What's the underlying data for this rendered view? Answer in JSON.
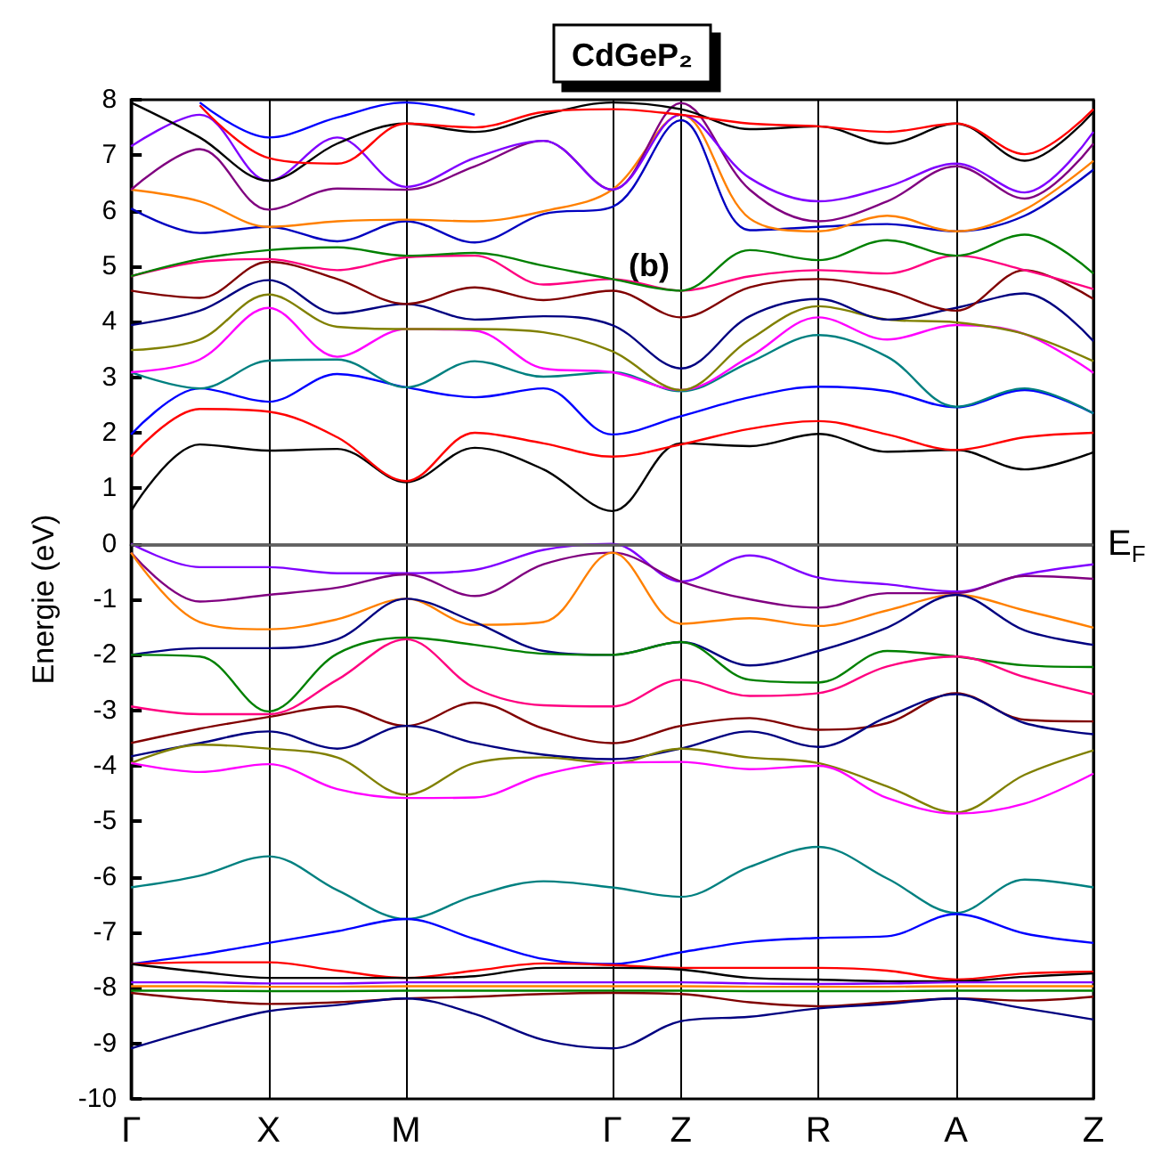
{
  "chart_data": {
    "type": "line",
    "title": "CdGeP₂",
    "ylabel": "Energie (eV)",
    "annotations": [
      "(b)"
    ],
    "categories": [
      "Γ",
      null,
      "X",
      null,
      "M",
      null,
      null,
      "Γ",
      "Z",
      null,
      "R",
      null,
      "A",
      null,
      "Z"
    ],
    "ylim": [
      -10,
      8
    ],
    "yticks": [
      -10,
      -9,
      -8,
      -7,
      -6,
      -5,
      -4,
      -3,
      -2,
      -1,
      0,
      1,
      2,
      3,
      4,
      5,
      6,
      7,
      8
    ],
    "grid": "x",
    "marker": "none",
    "ref_lines": [
      {
        "axis": "y",
        "value": 0,
        "label": "E$_{F}$",
        "color": "#606060"
      }
    ],
    "series": [
      {
        "color": "#000000",
        "values": [
          0.59,
          1.79,
          1.68,
          1.71,
          1.11,
          1.73,
          1.34,
          0.59,
          1.81,
          1.76,
          1.98,
          1.66,
          1.69,
          1.34,
          1.65
        ]
      },
      {
        "color": "#ff0000",
        "values": [
          1.57,
          2.43,
          2.38,
          1.92,
          1.13,
          2.0,
          1.81,
          1.57,
          1.79,
          2.07,
          2.21,
          1.97,
          1.69,
          1.92,
          2.0
        ]
      },
      {
        "color": "#0000ff",
        "values": [
          1.97,
          2.8,
          2.56,
          3.06,
          2.82,
          2.64,
          2.8,
          1.97,
          2.3,
          2.64,
          2.83,
          2.75,
          2.46,
          2.77,
          2.35
        ]
      },
      {
        "color": "#008080",
        "values": [
          3.09,
          2.8,
          3.3,
          3.32,
          2.82,
          3.29,
          3.01,
          3.09,
          2.75,
          3.27,
          3.76,
          3.37,
          2.47,
          2.8,
          2.35
        ]
      },
      {
        "color": "#ff00ff",
        "values": [
          3.09,
          3.32,
          4.25,
          3.37,
          3.87,
          3.84,
          3.16,
          3.09,
          2.77,
          3.37,
          4.08,
          3.68,
          3.94,
          3.78,
          3.08
        ]
      },
      {
        "color": "#808000",
        "values": [
          3.49,
          3.68,
          4.49,
          3.91,
          3.87,
          3.87,
          3.81,
          3.47,
          2.77,
          3.68,
          4.28,
          4.04,
          3.99,
          3.78,
          3.29
        ]
      },
      {
        "color": "#000080",
        "values": [
          3.94,
          4.2,
          4.75,
          4.15,
          4.32,
          4.04,
          4.1,
          3.94,
          3.16,
          4.1,
          4.41,
          4.04,
          4.25,
          4.51,
          3.65
        ]
      },
      {
        "color": "#800000",
        "values": [
          4.56,
          4.43,
          5.08,
          4.77,
          4.32,
          4.62,
          4.39,
          4.56,
          4.08,
          4.62,
          4.77,
          4.56,
          4.2,
          4.93,
          4.41
        ]
      },
      {
        "color": "#ff0080",
        "values": [
          4.82,
          5.08,
          5.13,
          4.93,
          5.16,
          5.19,
          4.67,
          4.77,
          4.56,
          4.82,
          4.93,
          4.87,
          5.19,
          4.93,
          4.59
        ]
      },
      {
        "color": "#008000",
        "values": [
          4.82,
          5.13,
          5.29,
          5.34,
          5.19,
          5.24,
          5.01,
          4.77,
          4.56,
          5.29,
          5.11,
          5.47,
          5.19,
          5.57,
          4.87
        ]
      },
      {
        "color": "#0000c0",
        "values": [
          6.04,
          5.6,
          5.71,
          5.45,
          5.81,
          5.43,
          5.94,
          6.07,
          7.63,
          5.65,
          5.71,
          5.76,
          5.63,
          5.91,
          6.74
        ]
      },
      {
        "color": "#ff8000",
        "values": [
          6.38,
          6.17,
          5.71,
          5.81,
          5.84,
          5.81,
          5.99,
          6.38,
          7.73,
          5.86,
          5.63,
          5.91,
          5.63,
          6.02,
          6.9
        ]
      },
      {
        "color": "#800080",
        "values": [
          6.38,
          7.11,
          6.02,
          6.4,
          6.38,
          6.8,
          7.26,
          6.38,
          7.94,
          6.38,
          5.81,
          6.17,
          6.8,
          6.22,
          7.21
        ]
      },
      {
        "color": "#8000ff",
        "values": [
          7.16,
          7.73,
          6.54,
          7.32,
          6.43,
          6.95,
          7.26,
          6.38,
          7.73,
          6.59,
          6.17,
          6.43,
          6.85,
          6.33,
          7.42
        ]
      },
      {
        "color": "#000000",
        "values": [
          7.95,
          7.32,
          6.54,
          7.21,
          7.57,
          7.42,
          7.73,
          7.95,
          7.83,
          7.47,
          7.52,
          7.21,
          7.57,
          6.9,
          7.78
        ]
      },
      {
        "color": "#ff0000",
        "values": [
          null,
          7.9,
          6.95,
          6.85,
          7.57,
          7.5,
          7.78,
          7.83,
          7.73,
          7.57,
          7.52,
          7.42,
          7.57,
          7.02,
          7.83
        ]
      },
      {
        "color": "#0000ff",
        "values": [
          null,
          7.95,
          7.32,
          7.68,
          7.95,
          7.73,
          null,
          null,
          null,
          null,
          null,
          null,
          null,
          null,
          null
        ]
      },
      {
        "color": "#8000ff",
        "values": [
          0,
          -0.42,
          -0.42,
          -0.53,
          -0.53,
          -0.47,
          -0.11,
          0,
          -0.68,
          -0.21,
          -0.61,
          -0.73,
          -0.86,
          -0.55,
          -0.37
        ]
      },
      {
        "color": "#800080",
        "values": [
          -0.16,
          -1.04,
          -0.92,
          -0.79,
          -0.55,
          -0.94,
          -0.37,
          -0.16,
          -0.68,
          -1.0,
          -1.15,
          -0.89,
          -0.89,
          -0.58,
          -0.63
        ]
      },
      {
        "color": "#ff8000",
        "values": [
          -0.16,
          -1.41,
          -1.54,
          -1.36,
          -0.99,
          -1.46,
          -1.41,
          -0.16,
          -1.44,
          -1.34,
          -1.48,
          -1.2,
          -0.92,
          -1.2,
          -1.51
        ]
      },
      {
        "color": "#000080",
        "values": [
          -2.0,
          -1.88,
          -1.88,
          -1.72,
          -0.99,
          -1.41,
          -1.93,
          -2.0,
          -1.77,
          -2.19,
          -1.93,
          -1.51,
          -0.92,
          -1.56,
          -1.82
        ]
      },
      {
        "color": "#008000",
        "values": [
          -2.0,
          -2.03,
          -3.02,
          -1.98,
          -1.69,
          -1.82,
          -1.98,
          -2.0,
          -1.77,
          -2.45,
          -2.5,
          -1.93,
          -2.03,
          -2.19,
          -2.22
        ]
      },
      {
        "color": "#ff0080",
        "values": [
          -2.93,
          -3.07,
          -3.07,
          -2.45,
          -1.72,
          -2.6,
          -2.91,
          -2.93,
          -2.45,
          -2.74,
          -2.69,
          -2.21,
          -2.03,
          -2.4,
          -2.71
        ]
      },
      {
        "color": "#800000",
        "values": [
          -3.59,
          -3.33,
          -3.12,
          -2.93,
          -3.28,
          -2.86,
          -3.33,
          -3.59,
          -3.28,
          -3.14,
          -3.35,
          -3.23,
          -2.69,
          -3.17,
          -3.2
        ]
      },
      {
        "color": "#000080",
        "values": [
          -3.83,
          -3.59,
          -3.38,
          -3.69,
          -3.28,
          -3.59,
          -3.8,
          -3.88,
          -3.69,
          -3.38,
          -3.66,
          -3.12,
          -2.71,
          -3.23,
          -3.43
        ]
      },
      {
        "color": "#808000",
        "values": [
          -3.95,
          -3.62,
          -3.69,
          -3.85,
          -4.52,
          -3.95,
          -3.85,
          -3.95,
          -3.69,
          -3.85,
          -3.95,
          -4.37,
          -4.84,
          -4.16,
          -3.72
        ]
      },
      {
        "color": "#ff00ff",
        "values": [
          -3.95,
          -4.11,
          -3.97,
          -4.42,
          -4.58,
          -4.57,
          -4.16,
          -3.95,
          -3.93,
          -4.06,
          -4.0,
          -4.58,
          -4.86,
          -4.68,
          -4.14
        ]
      },
      {
        "color": "#008080",
        "values": [
          -6.19,
          -5.98,
          -5.63,
          -6.24,
          -6.76,
          -6.34,
          -6.08,
          -6.19,
          -6.36,
          -5.82,
          -5.46,
          -6.03,
          -6.65,
          -6.05,
          -6.19
        ]
      },
      {
        "color": "#0000ff",
        "values": [
          -7.57,
          -7.4,
          -7.19,
          -6.98,
          -6.76,
          -7.12,
          -7.48,
          -7.57,
          -7.36,
          -7.17,
          -7.1,
          -7.07,
          -6.67,
          -7.02,
          -7.19
        ]
      },
      {
        "color": "#ff0000",
        "values": [
          -7.57,
          -7.54,
          -7.54,
          -7.69,
          -7.82,
          -7.69,
          -7.56,
          -7.59,
          -7.64,
          -7.64,
          -7.64,
          -7.69,
          -7.85,
          -7.74,
          -7.71
        ]
      },
      {
        "color": "#000000",
        "values": [
          -7.57,
          -7.71,
          -7.82,
          -7.82,
          -7.82,
          -7.79,
          -7.64,
          -7.64,
          -7.67,
          -7.82,
          -7.85,
          -7.88,
          -7.88,
          -7.8,
          -7.74
        ]
      },
      {
        "color": "#8000ff",
        "values": [
          -7.9,
          -7.9,
          -7.92,
          -7.92,
          -7.9,
          -7.9,
          -7.9,
          -7.9,
          -7.9,
          -7.92,
          -7.93,
          -7.92,
          -7.9,
          -7.9,
          -7.9
        ]
      },
      {
        "color": "#ff8000",
        "values": [
          -7.97,
          -7.97,
          -7.98,
          -7.98,
          -7.97,
          -7.97,
          -7.97,
          -7.97,
          -7.97,
          -7.98,
          -7.98,
          -7.98,
          -7.97,
          -7.97,
          -7.97
        ]
      },
      {
        "color": "#008000",
        "values": [
          -8.05,
          -8.05,
          -8.06,
          -8.06,
          -8.05,
          -8.05,
          -8.05,
          -8.05,
          -8.05,
          -8.06,
          -8.06,
          -8.06,
          -8.05,
          -8.05,
          -8.05
        ]
      },
      {
        "color": "#800000",
        "values": [
          -8.09,
          -8.21,
          -8.29,
          -8.26,
          -8.19,
          -8.16,
          -8.11,
          -8.09,
          -8.11,
          -8.26,
          -8.33,
          -8.26,
          -8.19,
          -8.23,
          -8.16
        ]
      },
      {
        "color": "#000080",
        "values": [
          -9.09,
          -8.73,
          -8.42,
          -8.31,
          -8.19,
          -8.47,
          -8.94,
          -9.09,
          -8.6,
          -8.52,
          -8.37,
          -8.29,
          -8.19,
          -8.37,
          -8.57
        ]
      }
    ]
  }
}
